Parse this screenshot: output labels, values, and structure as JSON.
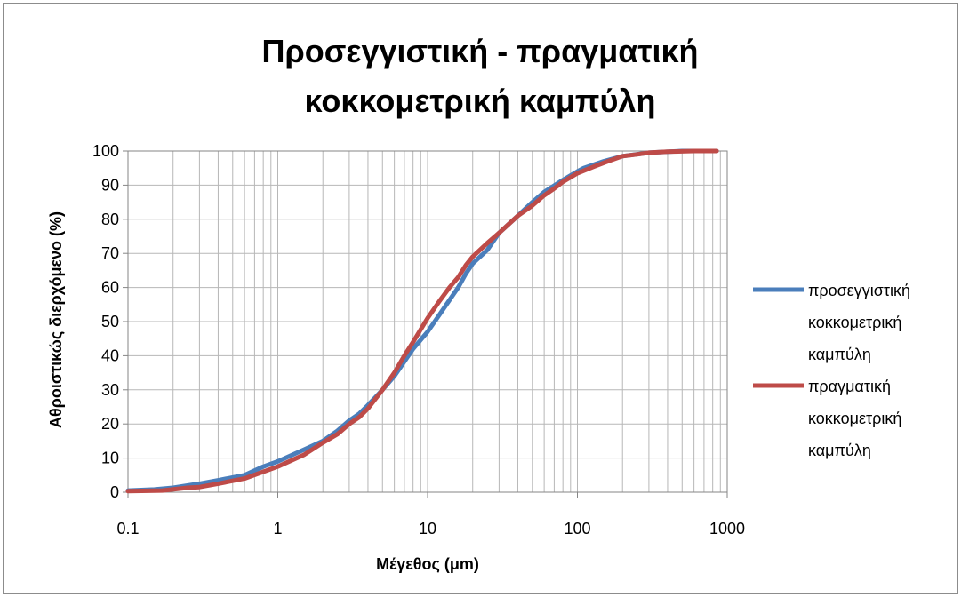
{
  "chart_data": {
    "type": "line",
    "title": [
      "Προσεγγιστική - πραγματική",
      "κοκκομετρική καμπύλη"
    ],
    "xlabel": "Μέγεθος (μm)",
    "ylabel": "Αθροιστικώς διερχόμενο (%)",
    "x_scale": "log",
    "xlim": [
      0.1,
      1000
    ],
    "ylim": [
      0,
      100
    ],
    "x_ticks": [
      "0.1",
      "1",
      "10",
      "100",
      "1000"
    ],
    "y_ticks": [
      "0",
      "10",
      "20",
      "30",
      "40",
      "50",
      "60",
      "70",
      "80",
      "90",
      "100"
    ],
    "grid": true,
    "legend_position": "right",
    "series": [
      {
        "name": [
          "προσεγγιστική",
          "κοκκομετρική",
          "καμπύλη"
        ],
        "color": "#4a7ebb",
        "x": [
          0.1,
          0.15,
          0.2,
          0.3,
          0.4,
          0.6,
          0.8,
          1,
          1.5,
          2,
          2.5,
          3,
          3.5,
          4,
          5,
          6,
          8,
          10,
          12,
          16,
          18,
          20,
          25,
          30,
          40,
          50,
          60,
          80,
          100,
          110,
          150,
          200,
          300,
          500,
          850
        ],
        "y": [
          0.5,
          0.8,
          1.3,
          2.5,
          3.5,
          5,
          7.5,
          9,
          12.5,
          15,
          18,
          21,
          23,
          25.5,
          30,
          34,
          42,
          47,
          52,
          60,
          64,
          67,
          71,
          76,
          81,
          85,
          88,
          91.5,
          94,
          95,
          97,
          98.5,
          99.5,
          100,
          100
        ]
      },
      {
        "name": [
          "πραγματική",
          "κοκκομετρική",
          "καμπύλη"
        ],
        "color": "#be4b48",
        "x": [
          0.1,
          0.17,
          0.25,
          0.3,
          0.4,
          0.6,
          0.8,
          1,
          1.5,
          2,
          2.5,
          3,
          3.5,
          4,
          5,
          6,
          7,
          8,
          10,
          12,
          14,
          16,
          18,
          20,
          25,
          30,
          40,
          50,
          60,
          70,
          80,
          100,
          130,
          160,
          200,
          250,
          300,
          400,
          600,
          850
        ],
        "y": [
          0.3,
          0.5,
          1.3,
          1.5,
          2.5,
          4,
          6,
          7.5,
          11,
          14.5,
          17,
          20,
          22,
          24.5,
          30,
          35,
          40,
          44,
          51,
          56,
          60,
          63,
          66.5,
          69,
          73,
          76,
          81,
          84,
          87,
          89,
          91,
          93.5,
          95.5,
          97,
          98.5,
          99,
          99.5,
          99.8,
          100,
          100
        ]
      }
    ]
  }
}
